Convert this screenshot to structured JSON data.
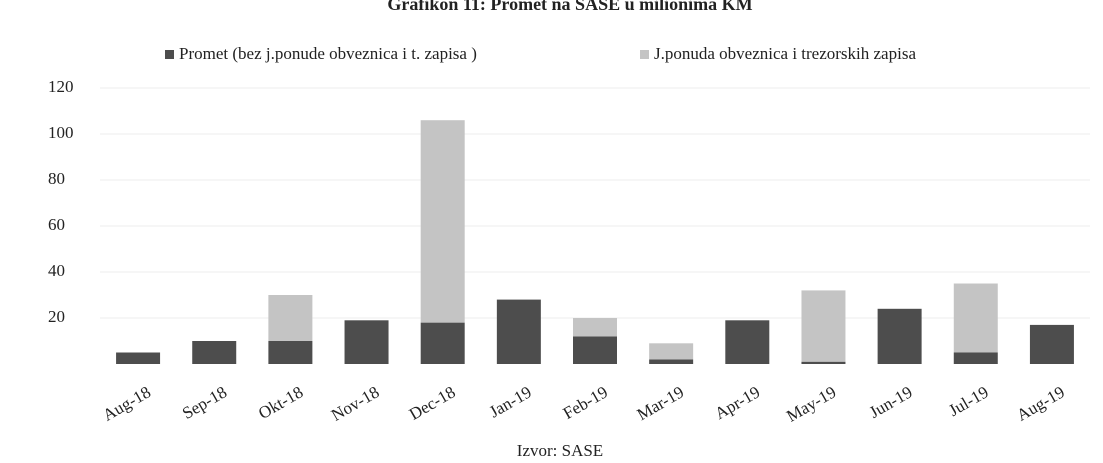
{
  "chart_data": {
    "type": "stacked_bar",
    "title": "Grafikon 11: Promet na SASE u milionima KM",
    "source": "Izvor: SASE",
    "categories": [
      "Aug-18",
      "Sep-18",
      "Okt-18",
      "Nov-18",
      "Dec-18",
      "Jan-19",
      "Feb-19",
      "Mar-19",
      "Apr-19",
      "May-19",
      "Jun-19",
      "Jul-19",
      "Aug-19"
    ],
    "series": [
      {
        "name": "Promet (bez j.ponude obveznica i t. zapisa )",
        "color": "#4d4d4d",
        "values": [
          5,
          10,
          10,
          19,
          18,
          28,
          12,
          2,
          19,
          1,
          24,
          5,
          17
        ]
      },
      {
        "name": "J.ponuda obveznica i trezorskih zapisa",
        "color": "#c4c4c4",
        "values": [
          0,
          0,
          20,
          0,
          88,
          0,
          8,
          7,
          0,
          31,
          0,
          30,
          0
        ]
      }
    ],
    "ylim": [
      0,
      120
    ],
    "yticks": [
      20,
      40,
      60,
      80,
      100,
      120
    ],
    "grid": true,
    "legend": "top"
  }
}
